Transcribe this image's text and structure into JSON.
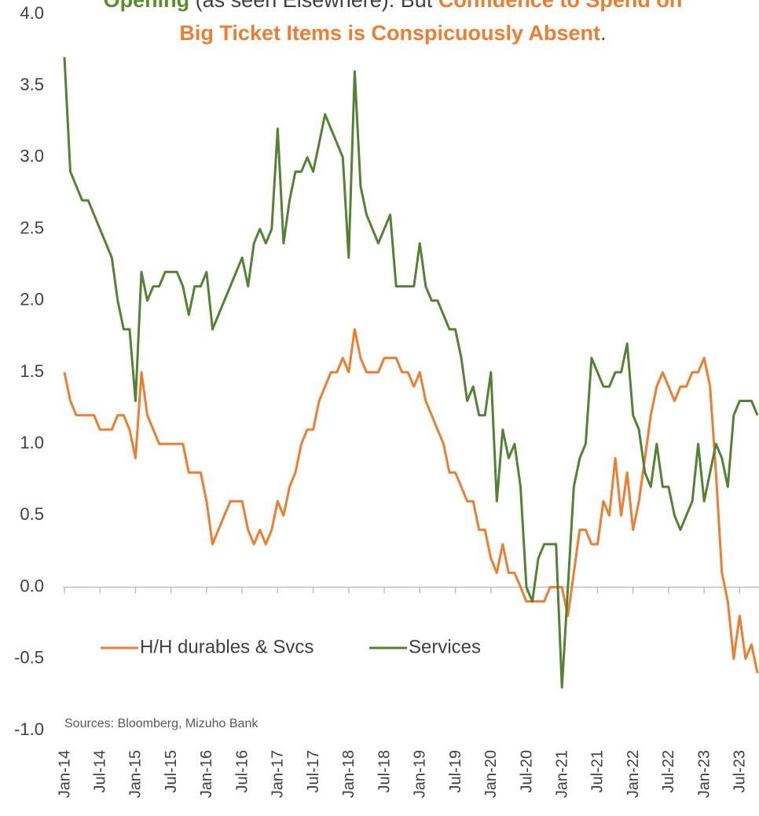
{
  "chart_data": {
    "type": "line",
    "title_lines": [
      [
        {
          "text": "Opening",
          "color": "#5b8c2a",
          "bold": true
        },
        {
          "text": " (as seen Elsewhere). But ",
          "color": "#404040",
          "bold": false
        },
        {
          "text": "Confidence to Spend on",
          "color": "#ed7d31",
          "bold": true
        }
      ],
      [
        {
          "text": "Big Ticket Items is Conspicuously Absent",
          "color": "#ed7d31",
          "bold": true
        },
        {
          "text": ".",
          "color": "#404040",
          "bold": false
        }
      ]
    ],
    "source": "Sources: Bloomberg,  Mizuho Bank",
    "categories": [
      "Jan-14",
      null,
      null,
      null,
      null,
      null,
      "Jul-14",
      null,
      null,
      null,
      null,
      null,
      "Jan-15",
      null,
      null,
      null,
      null,
      null,
      "Jul-15",
      null,
      null,
      null,
      null,
      null,
      "Jan-16",
      null,
      null,
      null,
      null,
      null,
      "Jul-16",
      null,
      null,
      null,
      null,
      null,
      "Jan-17",
      null,
      null,
      null,
      null,
      null,
      "Jul-17",
      null,
      null,
      null,
      null,
      null,
      "Jan-18",
      null,
      null,
      null,
      null,
      null,
      "Jul-18",
      null,
      null,
      null,
      null,
      null,
      "Jan-19",
      null,
      null,
      null,
      null,
      null,
      "Jul-19",
      null,
      null,
      null,
      null,
      null,
      "Jan-20",
      null,
      null,
      null,
      null,
      null,
      "Jul-20",
      null,
      null,
      null,
      null,
      null,
      "Jan-21",
      null,
      null,
      null,
      null,
      null,
      "Jul-21",
      null,
      null,
      null,
      null,
      null,
      "Jan-22",
      null,
      null,
      null,
      null,
      null,
      "Jul-22",
      null,
      null,
      null,
      null,
      null,
      "Jan-23",
      null,
      null,
      null,
      null,
      null,
      "Jul-23",
      null,
      null,
      null
    ],
    "series": [
      {
        "name": "H/H durables & Svcs",
        "color": "#ed7d31",
        "values": [
          1.5,
          1.3,
          1.2,
          1.2,
          1.2,
          1.2,
          1.1,
          1.1,
          1.1,
          1.2,
          1.2,
          1.1,
          0.9,
          1.5,
          1.2,
          1.1,
          1.0,
          1.0,
          1.0,
          1.0,
          1.0,
          0.8,
          0.8,
          0.8,
          0.6,
          0.3,
          0.4,
          0.5,
          0.6,
          0.6,
          0.6,
          0.4,
          0.3,
          0.4,
          0.3,
          0.4,
          0.6,
          0.5,
          0.7,
          0.8,
          1.0,
          1.1,
          1.1,
          1.3,
          1.4,
          1.5,
          1.5,
          1.6,
          1.5,
          1.8,
          1.6,
          1.5,
          1.5,
          1.5,
          1.6,
          1.6,
          1.6,
          1.5,
          1.5,
          1.4,
          1.5,
          1.3,
          1.2,
          1.1,
          1.0,
          0.8,
          0.8,
          0.7,
          0.6,
          0.6,
          0.4,
          0.4,
          0.2,
          0.1,
          0.3,
          0.1,
          0.1,
          0.0,
          -0.1,
          -0.1,
          -0.1,
          -0.1,
          0.0,
          0.0,
          0.0,
          -0.2,
          0.1,
          0.4,
          0.4,
          0.3,
          0.3,
          0.6,
          0.5,
          0.9,
          0.5,
          0.8,
          0.4,
          0.6,
          0.9,
          1.2,
          1.4,
          1.5,
          1.4,
          1.3,
          1.4,
          1.4,
          1.5,
          1.5,
          1.6,
          1.4,
          0.8,
          0.1,
          -0.1,
          -0.5,
          -0.2,
          -0.5,
          -0.4,
          -0.6
        ]
      },
      {
        "name": "Services",
        "color": "#548235",
        "values": [
          3.7,
          2.9,
          2.8,
          2.7,
          2.7,
          2.6,
          2.5,
          2.4,
          2.3,
          2.0,
          1.8,
          1.8,
          1.3,
          2.2,
          2.0,
          2.1,
          2.1,
          2.2,
          2.2,
          2.2,
          2.1,
          1.9,
          2.1,
          2.1,
          2.2,
          1.8,
          1.9,
          2.0,
          2.1,
          2.2,
          2.3,
          2.1,
          2.4,
          2.5,
          2.4,
          2.5,
          3.2,
          2.4,
          2.7,
          2.9,
          2.9,
          3.0,
          2.9,
          3.1,
          3.3,
          3.2,
          3.1,
          3.0,
          2.3,
          3.6,
          2.8,
          2.6,
          2.5,
          2.4,
          2.5,
          2.6,
          2.1,
          2.1,
          2.1,
          2.1,
          2.4,
          2.1,
          2.0,
          2.0,
          1.9,
          1.8,
          1.8,
          1.6,
          1.3,
          1.4,
          1.2,
          1.2,
          1.5,
          0.6,
          1.1,
          0.9,
          1.0,
          0.7,
          0.0,
          -0.1,
          0.2,
          0.3,
          0.3,
          0.3,
          -0.7,
          0.0,
          0.7,
          0.9,
          1.0,
          1.6,
          1.5,
          1.4,
          1.4,
          1.5,
          1.5,
          1.7,
          1.2,
          1.1,
          0.8,
          0.7,
          1.0,
          0.7,
          0.7,
          0.5,
          0.4,
          0.5,
          0.6,
          1.0,
          0.6,
          0.8,
          1.0,
          0.9,
          0.7,
          1.2,
          1.3,
          1.3,
          1.3,
          1.2
        ]
      }
    ],
    "ylim": [
      -1.0,
      4.0
    ],
    "yticks": [
      {
        "value": -1,
        "label": "-1.0"
      },
      {
        "value": -0.5,
        "label": "-0.5"
      },
      {
        "value": 0,
        "label": "0.0"
      },
      {
        "value": 0.5,
        "label": "0.5"
      },
      {
        "value": 1,
        "label": "1.0"
      },
      {
        "value": 1.5,
        "label": "1.5"
      },
      {
        "value": 2,
        "label": "2.0"
      },
      {
        "value": 2.5,
        "label": "2.5"
      },
      {
        "value": 3,
        "label": "3.0"
      },
      {
        "value": 3.5,
        "label": "3.5"
      },
      {
        "value": 4,
        "label": "4.0"
      }
    ],
    "grid": false,
    "legend": "bottom-left"
  }
}
